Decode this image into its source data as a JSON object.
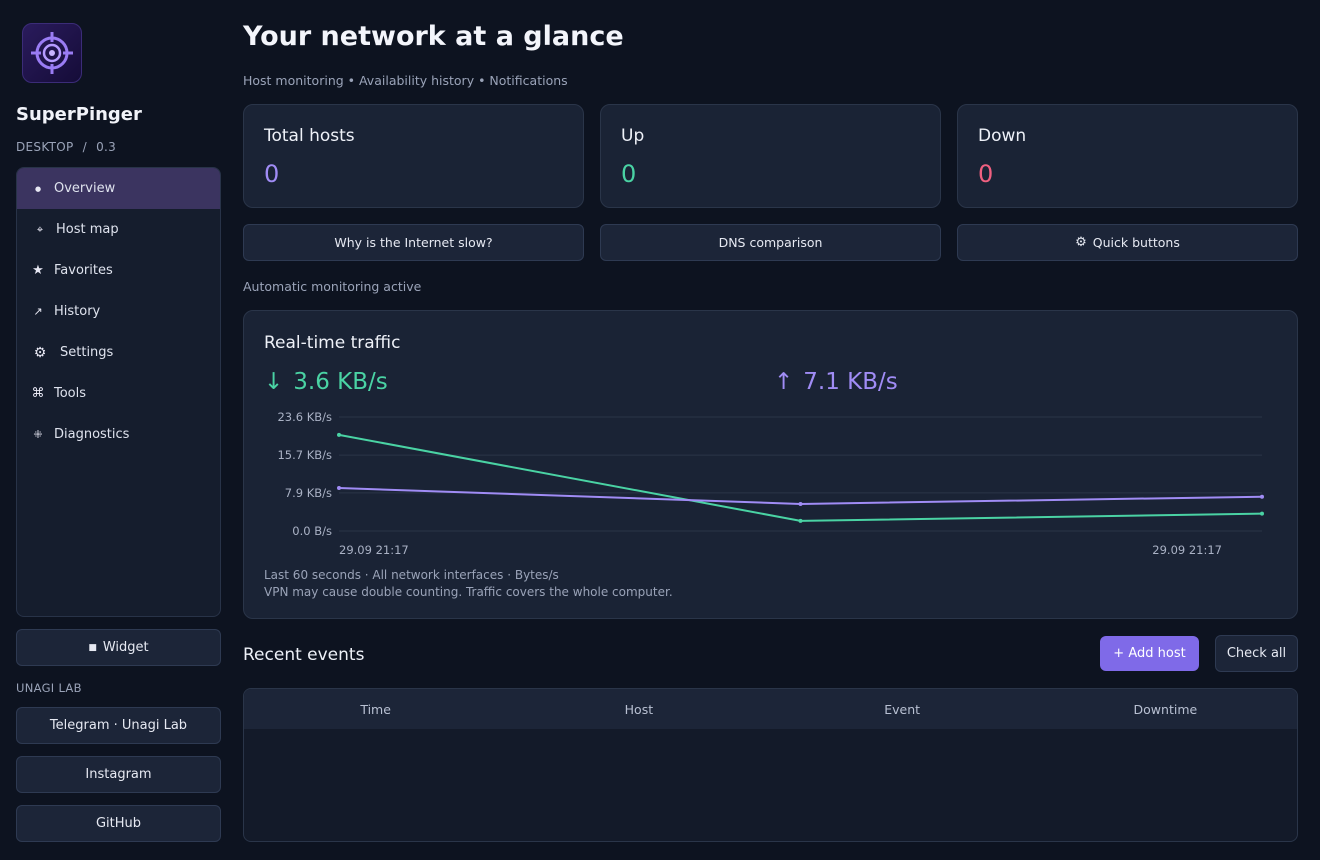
{
  "app": {
    "name": "SuperPinger",
    "platform": "DESKTOP",
    "version": "0.3",
    "separator": "/"
  },
  "sidebar": {
    "items": [
      {
        "label": "Overview",
        "icon": "dot-icon",
        "glyph": "●",
        "active": true
      },
      {
        "label": "Host map",
        "icon": "target-icon",
        "glyph": "⌖",
        "active": false
      },
      {
        "label": "Favorites",
        "icon": "star-icon",
        "glyph": "★",
        "active": false
      },
      {
        "label": "History",
        "icon": "arrow-up-right-icon",
        "glyph": "↗",
        "active": false
      },
      {
        "label": "Settings",
        "icon": "gear-icon",
        "glyph": "⚙",
        "active": false
      },
      {
        "label": "Tools",
        "icon": "command-icon",
        "glyph": "⌘",
        "active": false
      },
      {
        "label": "Diagnostics",
        "icon": "diagnostics-icon",
        "glyph": "⁜",
        "active": false
      }
    ],
    "widget_label": "Widget",
    "section_label": "UNAGI LAB",
    "links": [
      "Telegram · Unagi Lab",
      "Instagram",
      "GitHub"
    ]
  },
  "header": {
    "title": "Your network at a glance",
    "subtitle": "Host monitoring • Availability history • Notifications"
  },
  "stats": [
    {
      "label": "Total hosts",
      "value": "0",
      "color": "#a08cf5"
    },
    {
      "label": "Up",
      "value": "0",
      "color": "#4ad3a4"
    },
    {
      "label": "Down",
      "value": "0",
      "color": "#f06080"
    }
  ],
  "actions": [
    {
      "label": "Why is the Internet slow?",
      "icon": ""
    },
    {
      "label": "DNS comparison",
      "icon": ""
    },
    {
      "label": "Quick buttons",
      "icon": "gear-icon"
    }
  ],
  "monitoring_status": "Automatic monitoring active",
  "traffic": {
    "title": "Real-time traffic",
    "download": {
      "arrow": "↓",
      "value": "3.6 KB/s",
      "color": "#4ad3a4"
    },
    "upload": {
      "arrow": "↑",
      "value": "7.1 KB/s",
      "color": "#a08cf5"
    },
    "note_line1": "Last 60 seconds · All network interfaces · Bytes/s",
    "note_line2": "VPN may cause double counting. Traffic covers the whole computer."
  },
  "chart_data": {
    "type": "line",
    "x_start_label": "29.09 21:17",
    "x_end_label": "29.09 21:17",
    "x": [
      0,
      1,
      2
    ],
    "yticks": [
      {
        "value": 23.6,
        "label": "23.6 KB/s"
      },
      {
        "value": 15.7,
        "label": "15.7 KB/s"
      },
      {
        "value": 7.9,
        "label": "7.9 KB/s"
      },
      {
        "value": 0.0,
        "label": "0.0 B/s"
      }
    ],
    "ylim": [
      0,
      23.6
    ],
    "grid": true,
    "series": [
      {
        "color": "#4ad3a4",
        "values": [
          19.9,
          2.1,
          3.6
        ]
      },
      {
        "color": "#a08cf5",
        "values": [
          8.9,
          5.6,
          7.1
        ]
      }
    ]
  },
  "events": {
    "title": "Recent events",
    "add_label": "+ Add host",
    "check_label": "Check all",
    "columns": [
      "Time",
      "Host",
      "Event",
      "Downtime"
    ]
  }
}
